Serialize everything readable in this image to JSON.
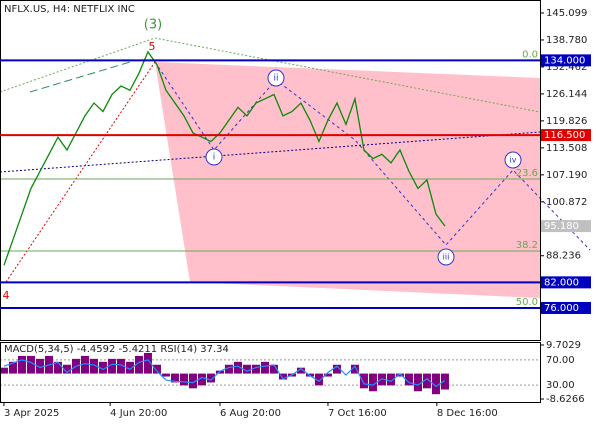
{
  "chart_data": {
    "type": "line",
    "title": "NFLX.US, H4:  NETFLIX INC",
    "series": [
      {
        "name": "NFLX",
        "color": "#0a8a0a",
        "values": [
          86,
          92,
          98,
          104,
          108,
          112,
          116,
          113,
          117,
          121,
          124,
          122,
          126,
          128,
          127,
          131,
          136,
          133,
          127,
          124,
          121,
          117,
          116,
          115,
          117,
          120,
          123,
          121,
          124,
          125,
          126,
          121,
          122,
          124,
          120,
          115,
          120,
          124,
          119,
          125,
          113,
          111,
          112,
          110,
          113,
          108,
          104,
          106,
          98,
          95.18
        ]
      }
    ],
    "xlim": [
      -0.44,
      59.56
    ],
    "xticks": [
      {
        "value": 0,
        "label": "3 Apr 2025"
      },
      {
        "value": 11.8,
        "label": "4 Jun 20:00"
      },
      {
        "value": 24,
        "label": "6 Aug 20:00"
      },
      {
        "value": 36,
        "label": "7 Oct 16:00"
      },
      {
        "value": 48.1,
        "label": "8 Dec 16:00"
      }
    ],
    "ylim": [
      68.5,
      148.14
    ],
    "yticks": [
      145.099,
      {
        "value": 138.78,
        "label": "138.780"
      },
      132.462,
      126.144,
      119.826,
      113.508,
      {
        "value": 107.19,
        "label": "107.190"
      },
      100.872,
      88.236
    ],
    "levels": [
      {
        "value": 134,
        "label": "134.000",
        "color": "#0000c0"
      },
      {
        "value": 116.5,
        "label": "116.500",
        "color": "#e00000"
      },
      {
        "value": 82,
        "label": "82.000",
        "color": "#0000c0"
      },
      {
        "value": 76,
        "label": "76.000",
        "color": "#0000c0"
      }
    ],
    "current_price": {
      "value": 95.18,
      "label": "95.180",
      "color": "#c0c0c0"
    },
    "fib_levels": [
      {
        "value": 134,
        "label": "0.0"
      },
      {
        "value": 106.2,
        "label": "23.6"
      },
      {
        "value": 89.36,
        "label": "38.2"
      },
      {
        "value": 76,
        "label": "50.0"
      }
    ],
    "fib_color": "#6aa84f",
    "waves": [
      "(3)",
      "5",
      "4",
      "ii",
      "i",
      "iii",
      "iv"
    ],
    "indicator": {
      "title": "MACD(5,34,5) -4.4592 -5.4211 RSI(14) 37.34",
      "ylim": [
        -8.6266,
        9.7029
      ],
      "yticks": [
        9.7029,
        -8.6266
      ],
      "y2lim": [
        0,
        100
      ],
      "y2ticks": [
        {
          "value": 70,
          "label": "70.00"
        },
        {
          "value": 30,
          "label": "30.00"
        }
      ],
      "histogram": {
        "color": "#800080",
        "values": [
          2,
          4,
          6,
          6,
          5,
          6,
          4,
          3,
          5,
          6,
          5,
          4,
          5,
          5,
          4,
          6,
          7,
          3,
          -1,
          -3,
          -4,
          -5,
          -4,
          -3,
          1,
          3,
          4,
          3,
          3,
          4,
          3,
          -2,
          -1,
          2,
          -1,
          -4,
          -1,
          3,
          0,
          3,
          -5,
          -6,
          -4,
          -4,
          -1,
          -4,
          -6,
          -5,
          -7,
          -5.4
        ]
      },
      "rsi": {
        "color": "#1e90ff",
        "values": [
          60,
          65,
          70,
          66,
          58,
          62,
          66,
          50,
          60,
          64,
          62,
          55,
          63,
          62,
          55,
          66,
          70,
          52,
          38,
          36,
          35,
          34,
          42,
          38,
          52,
          58,
          60,
          52,
          58,
          60,
          62,
          40,
          46,
          56,
          45,
          36,
          50,
          60,
          46,
          60,
          32,
          30,
          40,
          36,
          48,
          34,
          30,
          40,
          28,
          37.34
        ]
      }
    }
  }
}
